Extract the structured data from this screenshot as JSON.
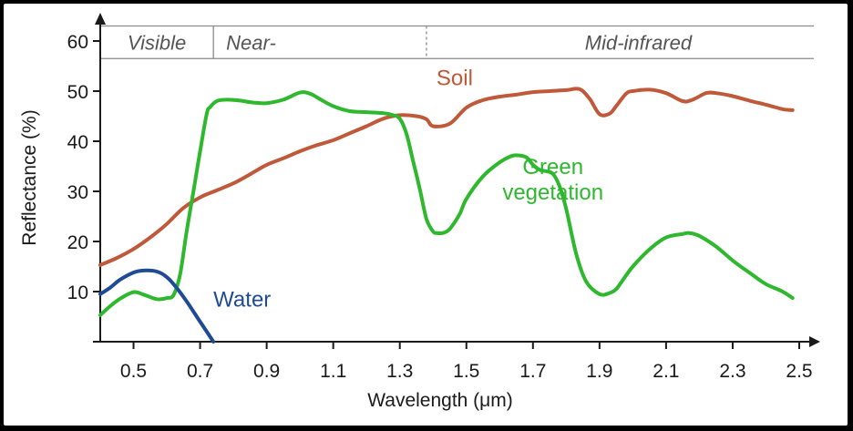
{
  "chart_data": {
    "type": "line",
    "xlabel": "Wavelength (μm)",
    "ylabel": "Reflectance (%)",
    "xlim": [
      0.4,
      2.5
    ],
    "ylim": [
      0,
      60
    ],
    "x_ticks": [
      0.5,
      0.7,
      0.9,
      1.1,
      1.3,
      1.5,
      1.7,
      1.9,
      2.1,
      2.3,
      2.5
    ],
    "y_ticks": [
      10,
      20,
      30,
      40,
      50,
      60
    ],
    "bands": [
      {
        "label": "Visible",
        "from": 0.4,
        "to": 0.74
      },
      {
        "label": "Near-",
        "from": 0.74,
        "to": 1.38
      },
      {
        "label": "Mid-infrared",
        "from": 1.38,
        "to": 2.5
      }
    ],
    "band_header": {
      "from": 56.5,
      "to": 63
    },
    "series": [
      {
        "name": "Soil",
        "color": "#c0583a",
        "label_at": [
          1.41,
          51.2
        ],
        "x": [
          0.4,
          0.45,
          0.5,
          0.55,
          0.6,
          0.65,
          0.7,
          0.75,
          0.8,
          0.85,
          0.9,
          0.95,
          1.0,
          1.05,
          1.1,
          1.15,
          1.2,
          1.25,
          1.3,
          1.35,
          1.38,
          1.4,
          1.45,
          1.5,
          1.55,
          1.6,
          1.65,
          1.7,
          1.75,
          1.8,
          1.84,
          1.87,
          1.9,
          1.93,
          1.95,
          1.98,
          2.0,
          2.05,
          2.1,
          2.15,
          2.18,
          2.22,
          2.25,
          2.3,
          2.35,
          2.4,
          2.45,
          2.48
        ],
        "values": [
          15.3,
          16.7,
          18.5,
          20.8,
          23.5,
          26.7,
          28.8,
          30.2,
          31.6,
          33.4,
          35.3,
          36.6,
          38.0,
          39.2,
          40.2,
          41.6,
          43.0,
          44.5,
          45.2,
          45.0,
          44.4,
          43.0,
          43.5,
          46.7,
          48.2,
          48.9,
          49.3,
          49.8,
          50.0,
          50.2,
          50.4,
          48.5,
          45.4,
          45.5,
          47.0,
          49.5,
          50.0,
          50.3,
          49.6,
          48.0,
          48.3,
          49.6,
          49.6,
          49.0,
          48.1,
          47.3,
          46.4,
          46.2
        ]
      },
      {
        "name": "Green vegetation",
        "color": "#2db82d",
        "label_lines": [
          "Green",
          "vegetation"
        ],
        "label_at": [
          1.76,
          33.5
        ],
        "x": [
          0.4,
          0.43,
          0.46,
          0.5,
          0.53,
          0.57,
          0.6,
          0.62,
          0.64,
          0.66,
          0.68,
          0.7,
          0.72,
          0.73,
          0.75,
          0.78,
          0.82,
          0.86,
          0.9,
          0.95,
          1.0,
          1.03,
          1.06,
          1.1,
          1.15,
          1.2,
          1.25,
          1.28,
          1.3,
          1.32,
          1.34,
          1.36,
          1.38,
          1.4,
          1.41,
          1.43,
          1.45,
          1.48,
          1.5,
          1.55,
          1.6,
          1.63,
          1.65,
          1.68,
          1.7,
          1.72,
          1.74,
          1.76,
          1.78,
          1.8,
          1.83,
          1.86,
          1.9,
          1.93,
          1.95,
          1.97,
          2.0,
          2.05,
          2.1,
          2.15,
          2.17,
          2.2,
          2.25,
          2.3,
          2.35,
          2.4,
          2.45,
          2.48
        ],
        "values": [
          5.3,
          7.1,
          8.6,
          9.9,
          9.4,
          8.5,
          8.7,
          9.3,
          13.5,
          22.2,
          30.0,
          38.0,
          45.5,
          46.8,
          48.0,
          48.3,
          48.1,
          47.7,
          47.6,
          48.3,
          49.7,
          49.5,
          48.4,
          47.0,
          46.0,
          45.8,
          45.6,
          45.2,
          44.5,
          41.5,
          36.0,
          30.5,
          24.5,
          22.0,
          21.7,
          21.7,
          22.5,
          25.5,
          28.5,
          33.0,
          35.8,
          36.9,
          37.2,
          36.8,
          35.3,
          34.3,
          34.0,
          33.5,
          31.0,
          26.5,
          17.5,
          12.0,
          9.5,
          9.7,
          10.5,
          12.3,
          15.0,
          18.4,
          20.8,
          21.5,
          21.7,
          21.1,
          19.0,
          16.2,
          13.8,
          11.5,
          10.0,
          8.7
        ]
      },
      {
        "name": "Water",
        "color": "#1f4a96",
        "label_at": [
          0.74,
          7.0
        ],
        "x": [
          0.4,
          0.43,
          0.46,
          0.5,
          0.53,
          0.57,
          0.6,
          0.63,
          0.66,
          0.69,
          0.72,
          0.74
        ],
        "values": [
          9.5,
          10.8,
          12.4,
          13.8,
          14.2,
          14.0,
          12.9,
          10.7,
          8.0,
          5.0,
          2.0,
          0.0
        ]
      }
    ]
  }
}
